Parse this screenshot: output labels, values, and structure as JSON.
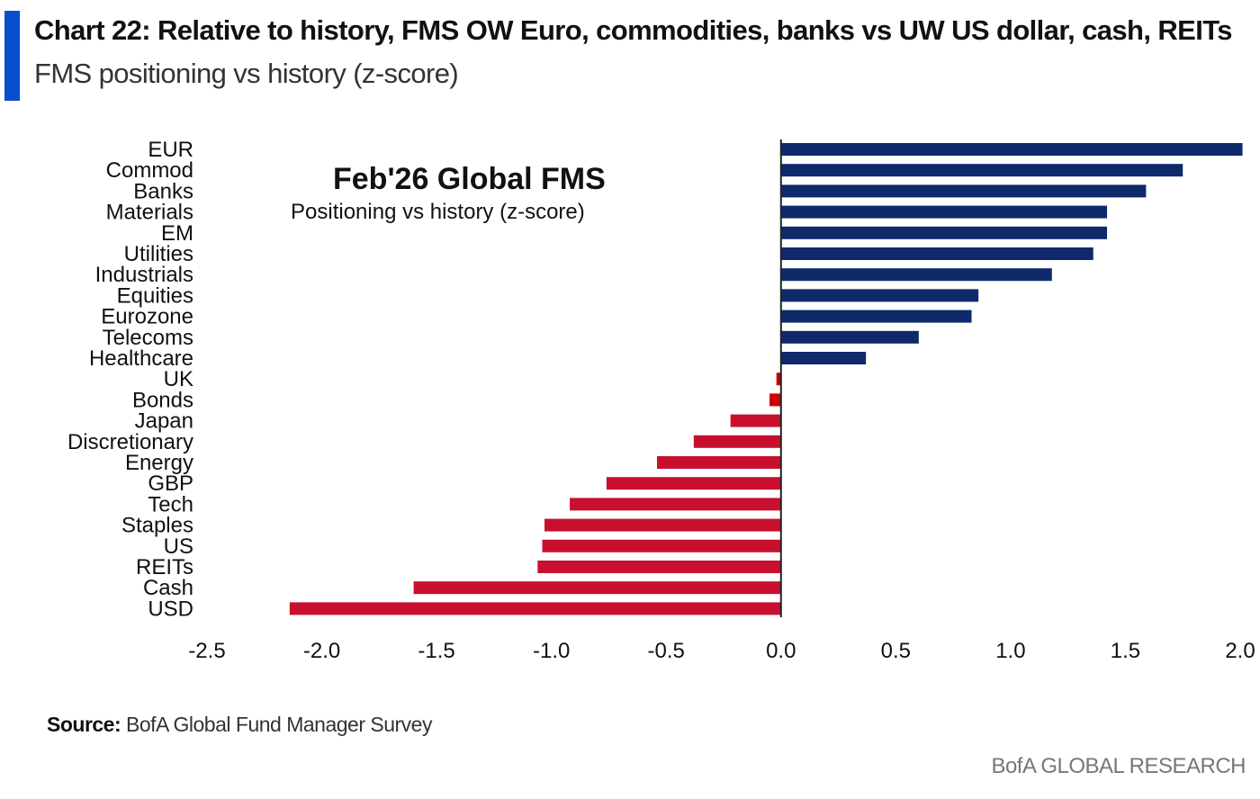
{
  "header": {
    "title": "Chart 22: Relative to history, FMS OW Euro, commodities, banks vs UW US dollar, cash, REITs",
    "subtitle": "FMS positioning vs history (z-score)"
  },
  "footer": {
    "source_label": "Source:",
    "source_text": "BofA Global Fund Manager Survey",
    "brand": "BofA GLOBAL RESEARCH"
  },
  "chart_data": {
    "type": "bar",
    "orientation": "horizontal",
    "title": "Feb'26 Global FMS",
    "subtitle": "Positioning vs history (z-score)",
    "categories": [
      "EUR",
      "Commod",
      "Banks",
      "Materials",
      "EM",
      "Utilities",
      "Industrials",
      "Equities",
      "Eurozone",
      "Telecoms",
      "Healthcare",
      "UK",
      "Bonds",
      "Japan",
      "Discretionary",
      "Energy",
      "GBP",
      "Tech",
      "Staples",
      "US",
      "REITs",
      "Cash",
      "USD"
    ],
    "values": [
      2.01,
      1.75,
      1.59,
      1.42,
      1.42,
      1.36,
      1.18,
      0.86,
      0.83,
      0.6,
      0.37,
      -0.02,
      -0.05,
      -0.22,
      -0.38,
      -0.54,
      -0.76,
      -0.92,
      -1.03,
      -1.04,
      -1.06,
      -1.6,
      -2.14
    ],
    "xlim": [
      -2.5,
      2.0
    ],
    "xticks": [
      "-2.5",
      "-2.0",
      "-1.5",
      "-1.0",
      "-0.5",
      "0.0",
      "0.5",
      "1.0",
      "1.5",
      "2.0"
    ],
    "grid": false,
    "colors": {
      "positive": "#0f2a6b",
      "negative": "#c8102e",
      "small_negative": "#cc0000"
    }
  }
}
